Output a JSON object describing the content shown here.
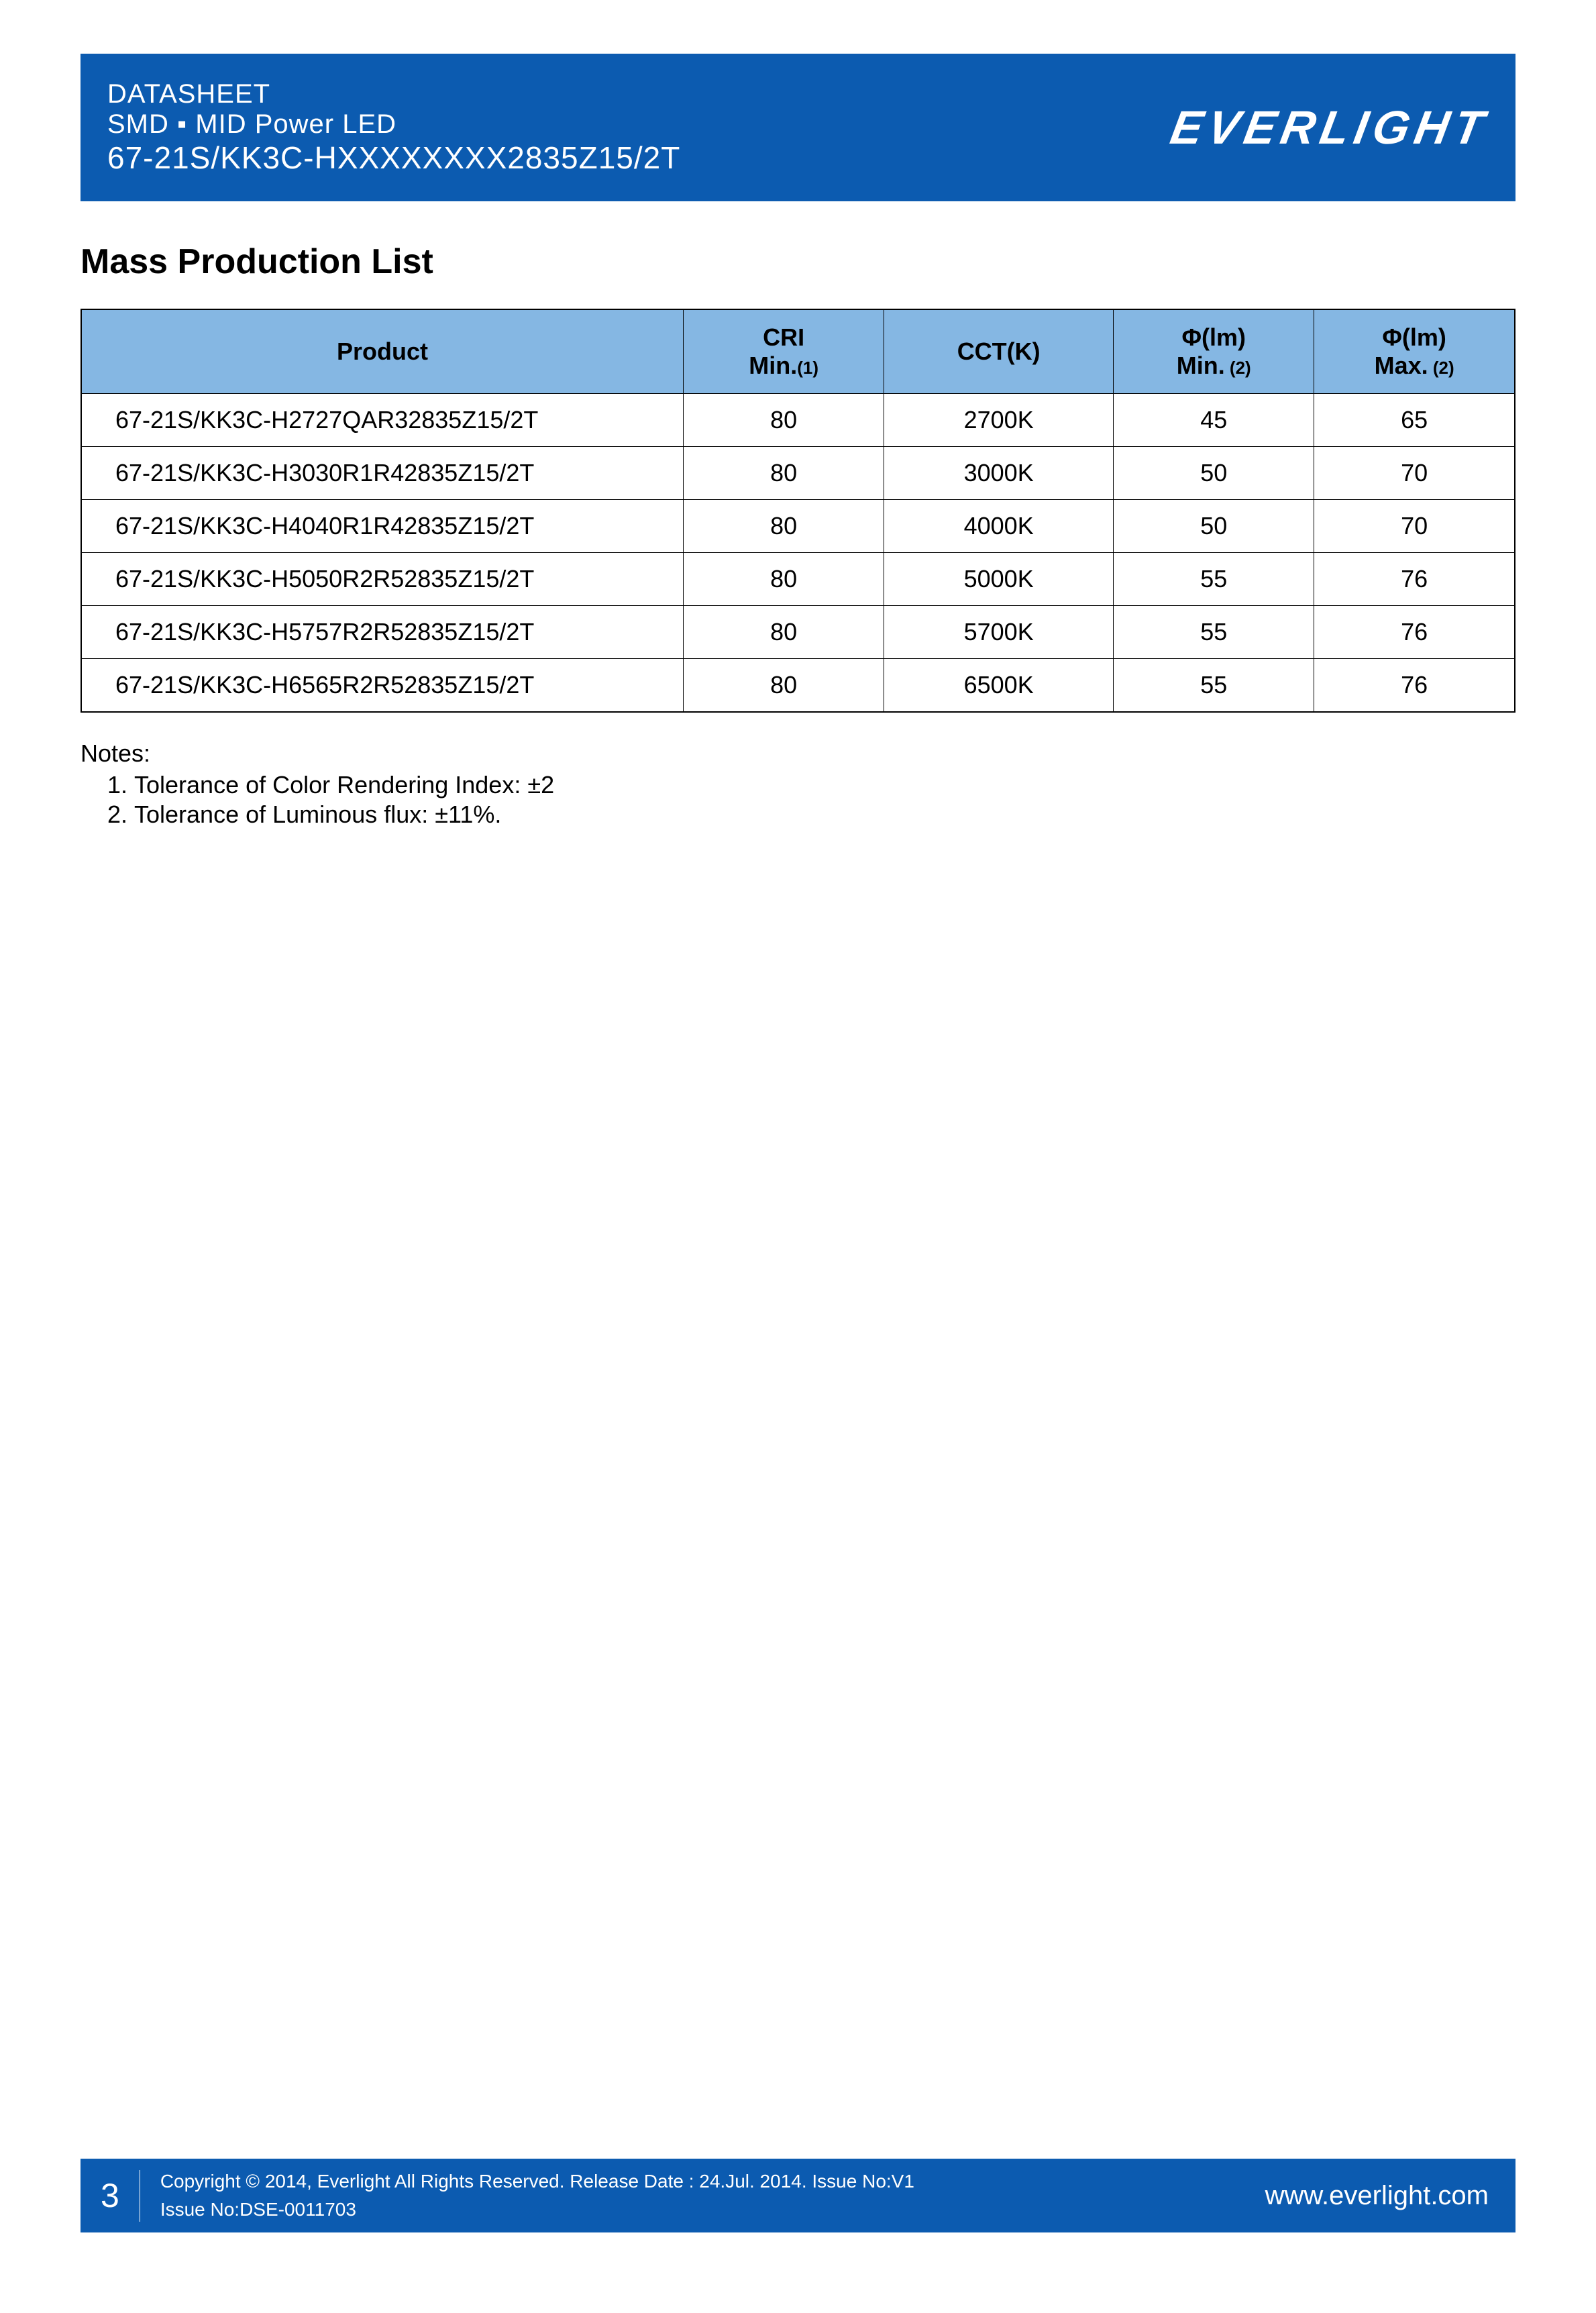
{
  "header": {
    "line1": "DATASHEET",
    "line2": "SMD ▪ MID Power LED",
    "line3": "67-21S/KK3C-HXXXXXXXX2835Z15/2T",
    "logo_text": "EVERLIGHT",
    "banner_bg_color": "#0c5bb0",
    "text_color": "#ffffff"
  },
  "section": {
    "title": "Mass Production List"
  },
  "table": {
    "header_bg_color": "#85b7e3",
    "border_color": "#000000",
    "columns": [
      {
        "label": "Product",
        "sub": ""
      },
      {
        "label": "CRI",
        "sub": "Min.",
        "note_ref": "(1)"
      },
      {
        "label": "CCT(K)",
        "sub": ""
      },
      {
        "label": "Φ(lm)",
        "sub": "Min.",
        "note_ref": " (2)"
      },
      {
        "label": "Φ(lm)",
        "sub": "Max.",
        "note_ref": " (2)"
      }
    ],
    "rows": [
      {
        "product": "67-21S/KK3C-H2727QAR32835Z15/2T",
        "cri": "80",
        "cct": "2700K",
        "min": "45",
        "max": "65"
      },
      {
        "product": "67-21S/KK3C-H3030R1R42835Z15/2T",
        "cri": "80",
        "cct": "3000K",
        "min": "50",
        "max": "70"
      },
      {
        "product": "67-21S/KK3C-H4040R1R42835Z15/2T",
        "cri": "80",
        "cct": "4000K",
        "min": "50",
        "max": "70"
      },
      {
        "product": "67-21S/KK3C-H5050R2R52835Z15/2T",
        "cri": "80",
        "cct": "5000K",
        "min": "55",
        "max": "76"
      },
      {
        "product": "67-21S/KK3C-H5757R2R52835Z15/2T",
        "cri": "80",
        "cct": "5700K",
        "min": "55",
        "max": "76"
      },
      {
        "product": "67-21S/KK3C-H6565R2R52835Z15/2T",
        "cri": "80",
        "cct": "6500K",
        "min": "55",
        "max": "76"
      }
    ]
  },
  "notes": {
    "title": "Notes:",
    "items": [
      "Tolerance of Color Rendering Index: ±2",
      "Tolerance of Luminous flux: ±11%."
    ]
  },
  "footer": {
    "page_number": "3",
    "copyright_line1": "Copyright © 2014, Everlight All Rights Reserved. Release Date : 24.Jul. 2014. Issue No:V1",
    "copyright_line2": "Issue No:DSE-0011703",
    "url": "www.everlight.com",
    "bg_color": "#0c5bb0"
  }
}
